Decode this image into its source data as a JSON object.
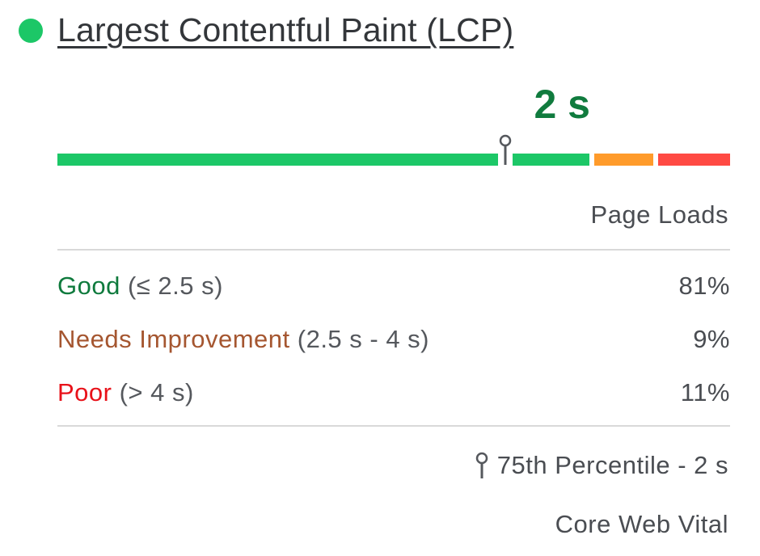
{
  "metric": {
    "title": "Largest Contentful Paint (LCP)",
    "status_color": "#1cc767",
    "value": "2 s"
  },
  "distribution_header": "Page Loads",
  "rows": [
    {
      "label": "Good",
      "range": "(≤ 2.5 s)",
      "percent": "81%",
      "share": 81,
      "color": "#1cc767"
    },
    {
      "label": "Needs Improvement",
      "range": "(2.5 s - 4 s)",
      "percent": "9%",
      "share": 9,
      "color": "#ff9b2b"
    },
    {
      "label": "Poor",
      "range": "(> 4 s)",
      "percent": "11%",
      "share": 11,
      "color": "#ff4a43"
    }
  ],
  "percentile": {
    "icon": "pin-icon",
    "label": "75th Percentile - 2 s"
  },
  "footer": "Core Web Vital"
}
